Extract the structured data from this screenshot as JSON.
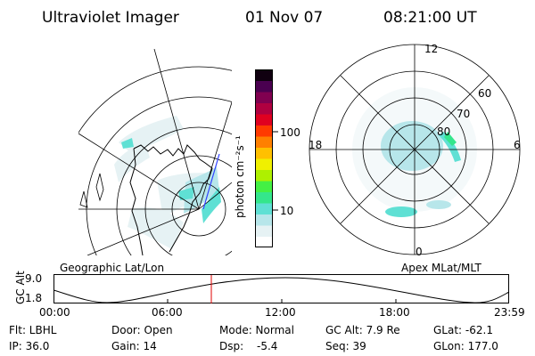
{
  "header": {
    "instrument": "Ultraviolet Imager",
    "date": "01 Nov 07",
    "time": "08:21:00 UT"
  },
  "colorbar": {
    "unit": "photon cm⁻²s⁻¹",
    "ticks": [
      "100",
      "10"
    ],
    "colors": [
      "#ffffff",
      "#e6f2f4",
      "#b7e6ea",
      "#5fe0d4",
      "#34e68c",
      "#44f044",
      "#aef000",
      "#f0f000",
      "#ffc000",
      "#ff8000",
      "#ff3a00",
      "#e00020",
      "#b00040",
      "#800050",
      "#4a0050",
      "#100010"
    ]
  },
  "geo_map": {
    "label": "Geographic Lat/Lon"
  },
  "polar_plot": {
    "label": "Apex MLat/MLT",
    "mlt_labels": [
      "12",
      "18",
      "6",
      "0"
    ],
    "lat_labels": [
      "60",
      "70",
      "80"
    ]
  },
  "altitude_panel": {
    "ylabel": "GC Alt",
    "y_ticks": [
      "9.0",
      "1.8"
    ],
    "x_ticks": [
      "00:00",
      "06:00",
      "12:00",
      "18:00",
      "23:59"
    ],
    "marker_time": "08:21"
  },
  "info": {
    "flt": "Flt: LBHL",
    "door": "Door: Open",
    "mode": "Mode: Normal",
    "gc_alt": "GC Alt: 7.9 Re",
    "glat": "GLat: -62.1",
    "ip": "IP: 36.0",
    "gain": "Gain: 14",
    "dsp_label": "Dsp:",
    "dsp_value": "-5.4",
    "seq": "Seq: 39",
    "glon": "GLon: 177.0"
  }
}
